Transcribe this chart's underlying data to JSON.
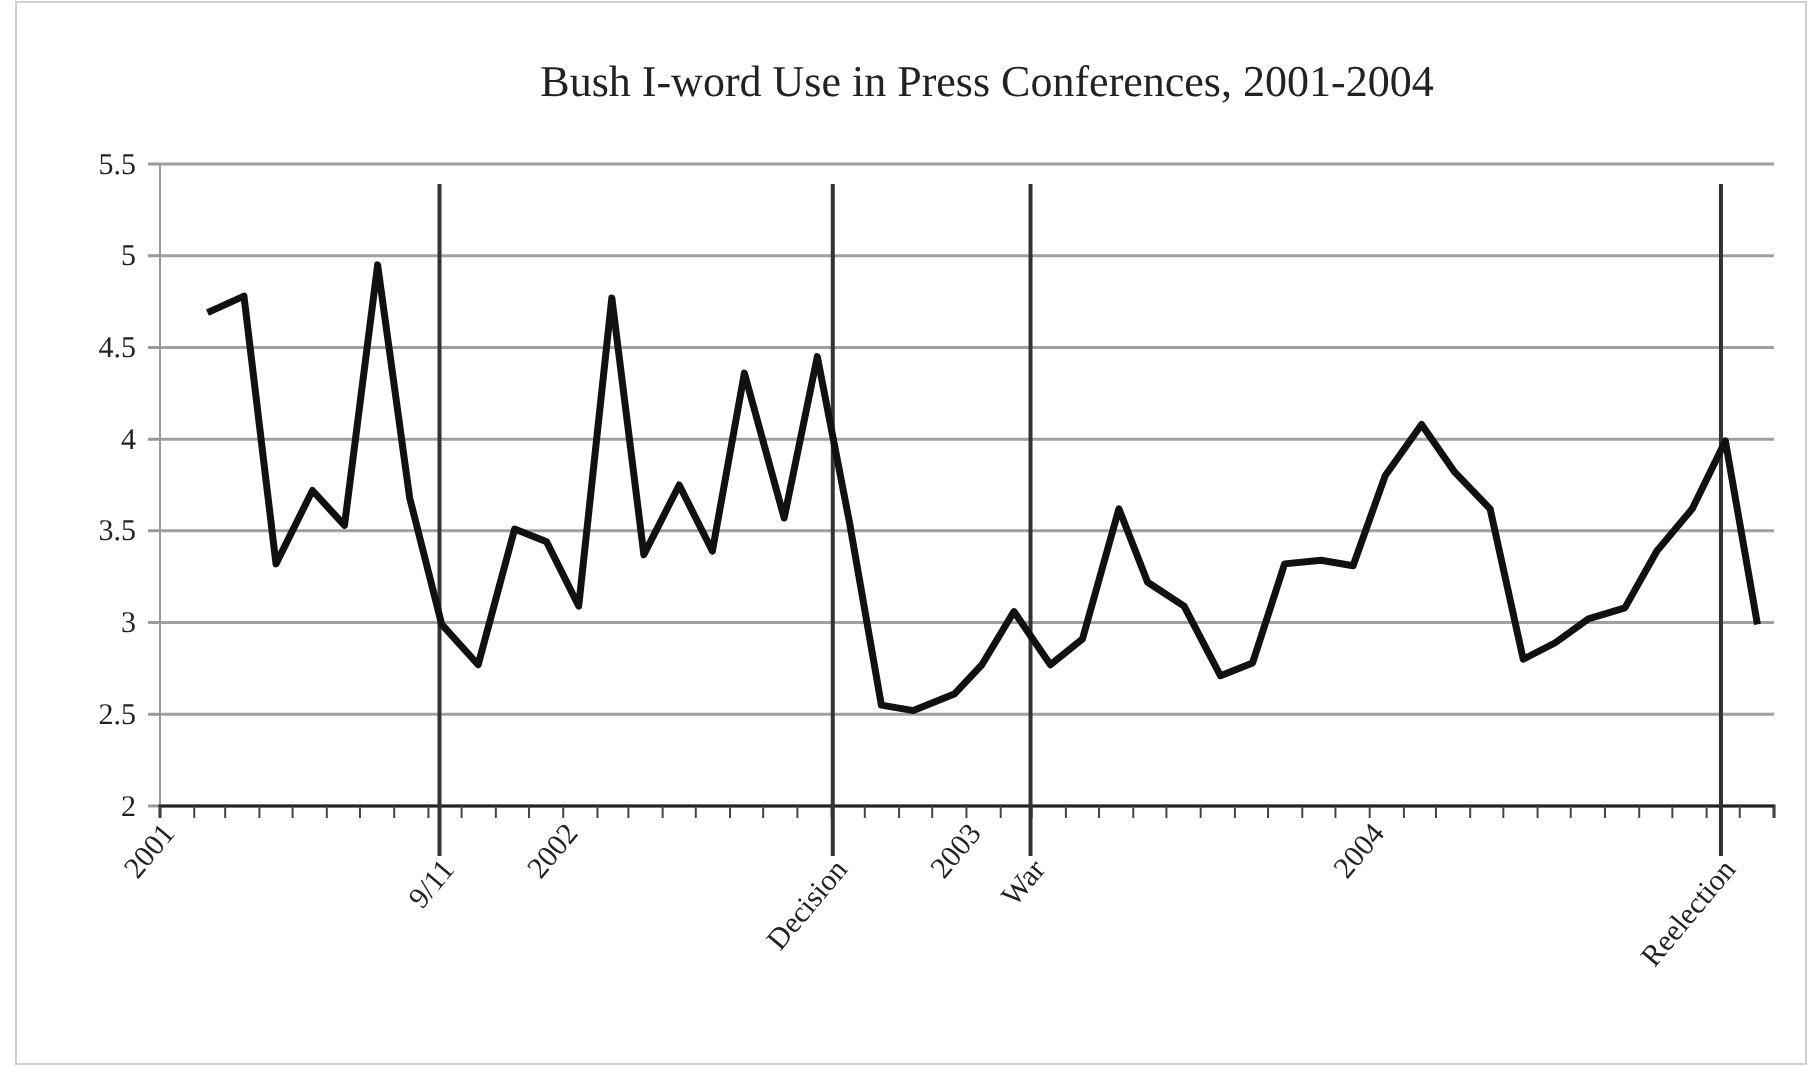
{
  "chart_data": {
    "type": "line",
    "title": "Bush I-word Use in Press Conferences, 2001-2004",
    "x": [
      "2001-02-13",
      "2001-03-18",
      "2001-04-16",
      "2001-05-19",
      "2001-06-17",
      "2001-07-17",
      "2001-08-15",
      "2001-09-13",
      "2001-10-16",
      "2001-11-18",
      "2001-12-17",
      "2002-01-15",
      "2002-02-14",
      "2002-03-15",
      "2002-04-16",
      "2002-05-16",
      "2002-06-14",
      "2002-07-20",
      "2002-08-19",
      "2002-09-17",
      "2002-10-16",
      "2002-11-14",
      "2002-12-21",
      "2003-01-15",
      "2003-02-13",
      "2003-03-18",
      "2003-04-16",
      "2003-05-19",
      "2003-06-14",
      "2003-07-17",
      "2003-08-19",
      "2003-09-17",
      "2003-10-16",
      "2003-11-18",
      "2003-12-17",
      "2004-01-15",
      "2004-02-17",
      "2004-03-18",
      "2004-04-19",
      "2004-05-19",
      "2004-06-17",
      "2004-07-17",
      "2004-08-19",
      "2004-09-17",
      "2004-10-19",
      "2004-11-18",
      "2004-12-17"
    ],
    "series": [
      {
        "color": "#111111",
        "values": [
          4.69,
          4.78,
          3.32,
          3.72,
          3.53,
          4.95,
          3.68,
          2.99,
          2.77,
          3.51,
          3.44,
          3.09,
          4.77,
          3.37,
          3.75,
          3.39,
          4.36,
          3.57,
          4.45,
          3.55,
          2.55,
          2.52,
          2.61,
          2.77,
          3.06,
          2.77,
          2.91,
          3.62,
          3.22,
          3.09,
          2.71,
          2.78,
          3.32,
          3.34,
          3.31,
          3.8,
          4.08,
          3.82,
          3.62,
          2.8,
          2.89,
          3.02,
          3.08,
          3.39,
          3.62,
          3.99,
          2.99
        ]
      }
    ],
    "xlim": [
      "2001-01-01",
      "2005-01-01"
    ],
    "xticks": [
      "2001",
      {
        "value": "2001-02",
        "label": null
      },
      {
        "value": "2001-03",
        "label": null
      },
      {
        "value": "2001-04",
        "label": null
      },
      {
        "value": "2001-05",
        "label": null
      },
      {
        "value": "2001-06",
        "label": null
      },
      {
        "value": "2001-07",
        "label": null
      },
      {
        "value": "2001-08",
        "label": null
      },
      {
        "value": "2001-09",
        "label": null
      },
      {
        "value": "2001-10",
        "label": null
      },
      {
        "value": "2001-11",
        "label": null
      },
      {
        "value": "2001-12",
        "label": null
      },
      "2002",
      {
        "value": "2002-02",
        "label": null
      },
      {
        "value": "2002-03",
        "label": null
      },
      {
        "value": "2002-04",
        "label": null
      },
      {
        "value": "2002-05",
        "label": null
      },
      {
        "value": "2002-06",
        "label": null
      },
      {
        "value": "2002-07",
        "label": null
      },
      {
        "value": "2002-08",
        "label": null
      },
      {
        "value": "2002-09",
        "label": null
      },
      {
        "value": "2002-10",
        "label": null
      },
      {
        "value": "2002-11",
        "label": null
      },
      {
        "value": "2002-12",
        "label": null
      },
      "2003",
      {
        "value": "2003-02",
        "label": null
      },
      {
        "value": "2003-03",
        "label": null
      },
      {
        "value": "2003-04",
        "label": null
      },
      {
        "value": "2003-05",
        "label": null
      },
      {
        "value": "2003-06",
        "label": null
      },
      {
        "value": "2003-07",
        "label": null
      },
      {
        "value": "2003-08",
        "label": null
      },
      {
        "value": "2003-09",
        "label": null
      },
      {
        "value": "2003-10",
        "label": null
      },
      {
        "value": "2003-11",
        "label": null
      },
      {
        "value": "2003-12",
        "label": null
      },
      "2004",
      {
        "value": "2004-02",
        "label": null
      },
      {
        "value": "2004-03",
        "label": null
      },
      {
        "value": "2004-04",
        "label": null
      },
      {
        "value": "2004-05",
        "label": null
      },
      {
        "value": "2004-06",
        "label": null
      },
      {
        "value": "2004-07",
        "label": null
      },
      {
        "value": "2004-08",
        "label": null
      },
      {
        "value": "2004-09",
        "label": null
      },
      {
        "value": "2004-10",
        "label": null
      },
      {
        "value": "2004-11",
        "label": null
      },
      {
        "value": "2004-12",
        "label": null
      },
      {
        "value": "2005",
        "label": null
      }
    ],
    "ylim": [
      2,
      5.5
    ],
    "yticks": [
      2,
      2.5,
      3,
      3.5,
      4,
      4.5,
      5,
      5.5
    ],
    "grid": "y",
    "marker": "none",
    "line_style": "solid",
    "ref_lines": [
      {
        "axis": "x",
        "value": "2001-09-11",
        "label": "9/11"
      },
      {
        "axis": "x",
        "value": "2002-09-02",
        "label": "Decision"
      },
      {
        "axis": "x",
        "value": "2003-02-28",
        "label": "War"
      },
      {
        "axis": "x",
        "value": "2004-11-14",
        "label": "Reelection"
      }
    ]
  }
}
